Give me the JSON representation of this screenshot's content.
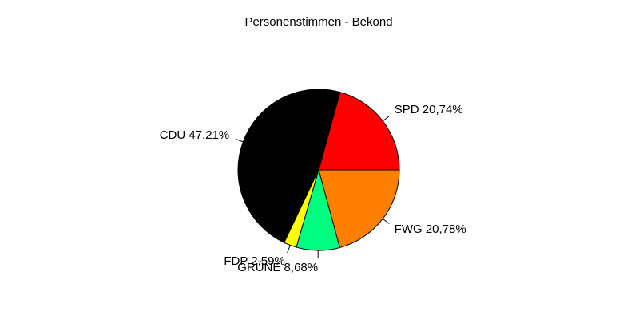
{
  "chart_data": {
    "type": "pie",
    "title": "Personenstimmen - Bekond",
    "categories": [
      "SPD 20,74%",
      "CDU 47,21%",
      "FDP 2,59%",
      "GRÜNE 8,68%",
      "FWG 20,78%"
    ],
    "values": [
      20.74,
      47.21,
      2.59,
      8.68,
      20.78
    ],
    "colors": [
      "#ff0000",
      "#000000",
      "#ffff00",
      "#00ff80",
      "#ff8000"
    ]
  }
}
